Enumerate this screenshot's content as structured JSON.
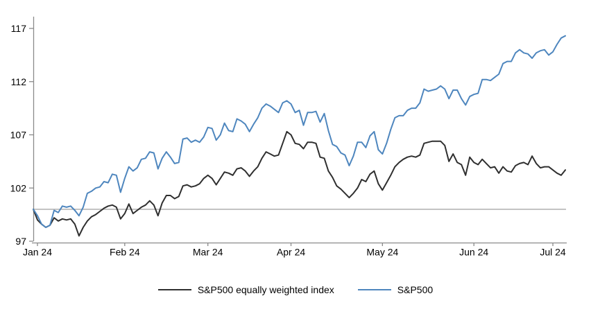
{
  "chart_data": {
    "type": "line",
    "legend_position": "bottom",
    "x_axis": {
      "tick_labels": [
        "Jan 24",
        "Feb 24",
        "Mar 24",
        "Apr 24",
        "May 24",
        "Jun 24",
        "Jul 24"
      ],
      "tick_indices": [
        1,
        22,
        42,
        62,
        84,
        106,
        125
      ]
    },
    "y_axis": {
      "min": 97,
      "max": 117,
      "ticks": [
        97,
        102,
        107,
        112,
        117
      ]
    },
    "reference_line": {
      "value": 100,
      "color": "#a8a8a8"
    },
    "axis_color": "#8a8a8a",
    "dates": [
      "12-29",
      "01-02",
      "01-03",
      "01-04",
      "01-05",
      "01-08",
      "01-09",
      "01-10",
      "01-11",
      "01-12",
      "01-16",
      "01-17",
      "01-18",
      "01-19",
      "01-22",
      "01-23",
      "01-24",
      "01-25",
      "01-26",
      "01-29",
      "01-30",
      "01-31",
      "02-01",
      "02-02",
      "02-05",
      "02-06",
      "02-07",
      "02-08",
      "02-09",
      "02-12",
      "02-13",
      "02-14",
      "02-15",
      "02-16",
      "02-20",
      "02-21",
      "02-22",
      "02-23",
      "02-26",
      "02-27",
      "02-28",
      "02-29",
      "03-01",
      "03-04",
      "03-05",
      "03-06",
      "03-07",
      "03-08",
      "03-11",
      "03-12",
      "03-13",
      "03-14",
      "03-15",
      "03-18",
      "03-19",
      "03-20",
      "03-21",
      "03-22",
      "03-25",
      "03-26",
      "03-27",
      "03-28",
      "04-01",
      "04-02",
      "04-03",
      "04-04",
      "04-05",
      "04-08",
      "04-09",
      "04-10",
      "04-11",
      "04-12",
      "04-15",
      "04-16",
      "04-17",
      "04-18",
      "04-19",
      "04-22",
      "04-23",
      "04-24",
      "04-25",
      "04-26",
      "04-29",
      "04-30",
      "05-01",
      "05-02",
      "05-03",
      "05-06",
      "05-07",
      "05-08",
      "05-09",
      "05-10",
      "05-13",
      "05-14",
      "05-15",
      "05-16",
      "05-17",
      "05-20",
      "05-21",
      "05-22",
      "05-23",
      "05-24",
      "05-28",
      "05-29",
      "05-30",
      "05-31",
      "06-03",
      "06-04",
      "06-05",
      "06-06",
      "06-07",
      "06-10",
      "06-11",
      "06-12",
      "06-13",
      "06-14",
      "06-17",
      "06-18",
      "06-20",
      "06-21",
      "06-24",
      "06-25",
      "06-26",
      "06-27",
      "06-28",
      "07-01",
      "07-02",
      "07-03",
      "07-05"
    ],
    "series": [
      {
        "name": "S&P500 equally weighted index",
        "color": "#2f2f2f",
        "values": [
          100.0,
          99.0,
          98.6,
          98.3,
          98.5,
          99.2,
          98.9,
          99.1,
          99.0,
          99.1,
          98.6,
          97.5,
          98.3,
          98.9,
          99.3,
          99.5,
          99.8,
          100.1,
          100.3,
          100.4,
          100.2,
          99.1,
          99.6,
          100.5,
          99.6,
          99.9,
          100.2,
          100.4,
          100.8,
          100.4,
          99.4,
          100.6,
          101.3,
          101.3,
          101.0,
          101.2,
          102.2,
          102.3,
          102.1,
          102.2,
          102.4,
          102.9,
          103.2,
          102.9,
          102.3,
          102.9,
          103.5,
          103.4,
          103.2,
          103.8,
          103.9,
          103.6,
          103.1,
          103.6,
          104.0,
          104.8,
          105.4,
          105.2,
          105.0,
          105.1,
          106.2,
          107.3,
          107.0,
          106.2,
          106.1,
          105.7,
          106.3,
          106.3,
          106.2,
          104.9,
          104.8,
          103.6,
          103.0,
          102.2,
          101.9,
          101.5,
          101.1,
          101.5,
          102.0,
          102.8,
          102.6,
          103.3,
          103.6,
          102.4,
          101.8,
          102.5,
          103.2,
          104.0,
          104.4,
          104.7,
          104.9,
          105.0,
          104.9,
          105.1,
          106.2,
          106.3,
          106.4,
          106.4,
          106.4,
          106.0,
          104.5,
          105.2,
          104.4,
          104.2,
          103.2,
          104.9,
          104.4,
          104.2,
          104.7,
          104.3,
          103.9,
          104.0,
          103.4,
          104.0,
          103.6,
          103.5,
          104.1,
          104.3,
          104.4,
          104.2,
          105.0,
          104.3,
          103.9,
          104.0,
          104.0,
          103.7,
          103.4,
          103.2,
          103.7
        ]
      },
      {
        "name": "S&P500",
        "color": "#4e86be",
        "values": [
          100.0,
          99.4,
          98.6,
          98.3,
          98.5,
          99.9,
          99.7,
          100.3,
          100.2,
          100.3,
          99.9,
          99.4,
          100.2,
          101.5,
          101.7,
          102.0,
          102.1,
          102.6,
          102.5,
          103.3,
          103.2,
          101.6,
          102.9,
          104.0,
          103.6,
          103.9,
          104.7,
          104.8,
          105.4,
          105.3,
          103.8,
          104.8,
          105.4,
          104.9,
          104.3,
          104.4,
          106.6,
          106.7,
          106.3,
          106.5,
          106.3,
          106.8,
          107.7,
          107.6,
          106.5,
          107.0,
          108.1,
          107.4,
          107.3,
          108.5,
          108.3,
          108.0,
          107.3,
          108.0,
          108.6,
          109.5,
          109.9,
          109.7,
          109.4,
          109.1,
          110.0,
          110.2,
          109.9,
          109.1,
          109.3,
          107.9,
          109.1,
          109.1,
          109.2,
          108.2,
          109.0,
          107.4,
          106.1,
          105.9,
          105.3,
          105.1,
          104.1,
          105.0,
          106.3,
          106.3,
          105.8,
          106.9,
          107.3,
          105.6,
          105.2,
          106.2,
          107.5,
          108.6,
          108.8,
          108.8,
          109.3,
          109.5,
          109.5,
          110.0,
          111.3,
          111.1,
          111.2,
          111.3,
          111.6,
          111.3,
          110.4,
          111.2,
          111.2,
          110.4,
          109.8,
          110.6,
          110.8,
          110.9,
          112.2,
          112.2,
          112.1,
          112.4,
          112.7,
          113.7,
          113.9,
          113.9,
          114.7,
          115.0,
          114.7,
          114.6,
          114.2,
          114.7,
          114.9,
          115.0,
          114.5,
          114.8,
          115.5,
          116.1,
          116.3
        ]
      }
    ]
  },
  "legend": {
    "item1": "S&P500 equally weighted index",
    "item2": "S&P500"
  }
}
